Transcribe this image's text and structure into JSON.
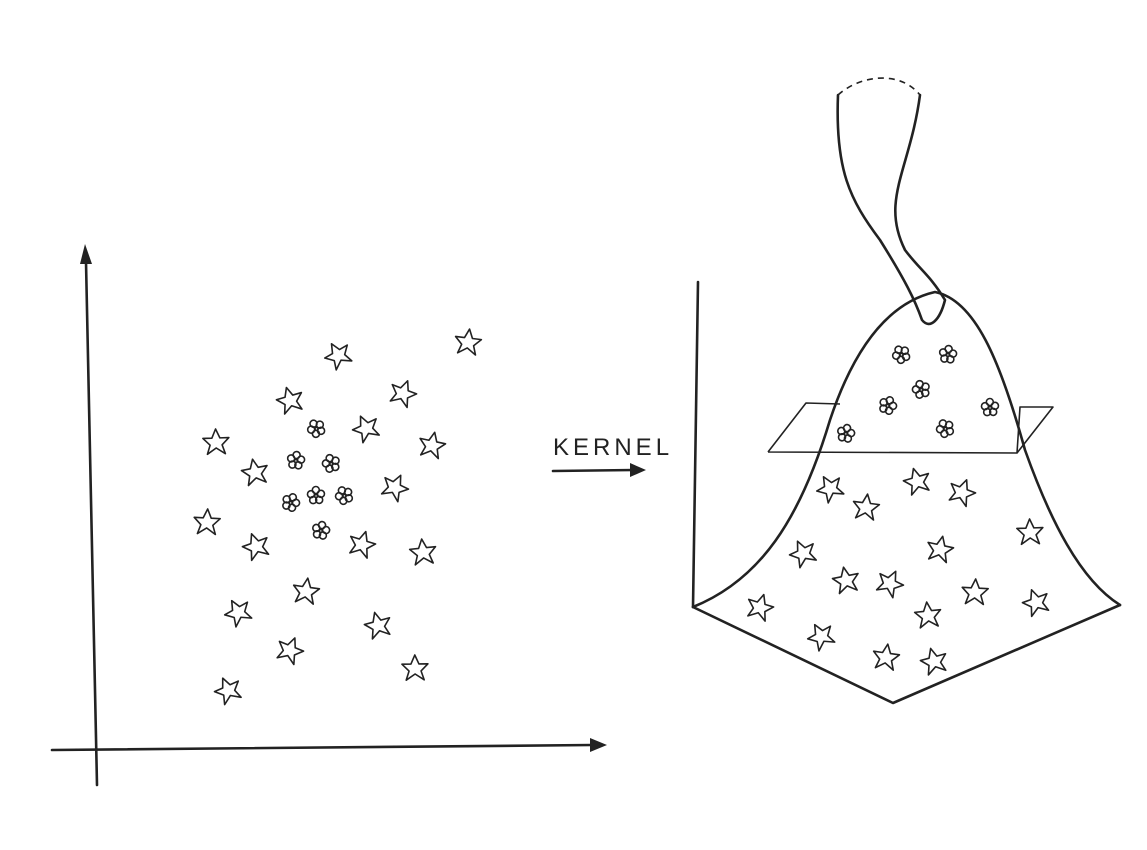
{
  "arrow": {
    "label": "KERNEL"
  }
}
